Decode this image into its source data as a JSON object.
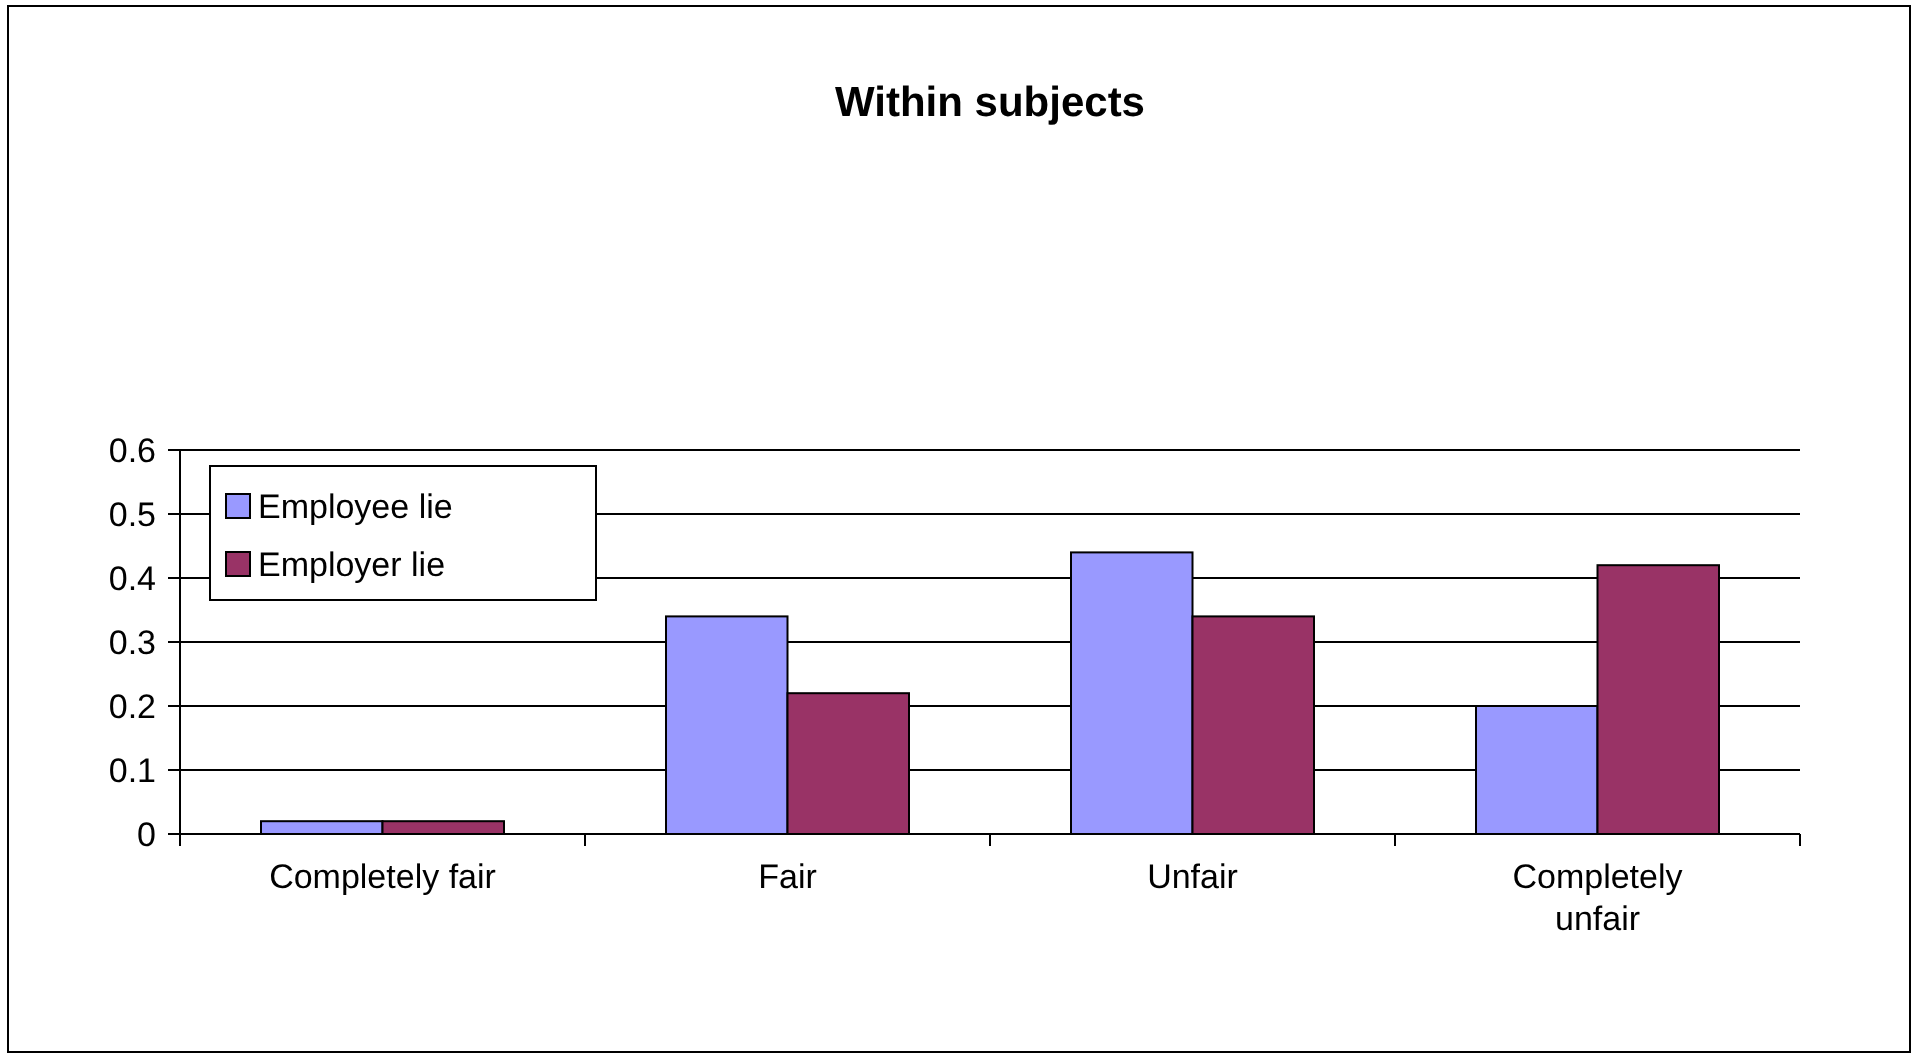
{
  "chart_data": {
    "type": "bar",
    "title": "Within subjects",
    "categories": [
      "Completely fair",
      "Fair",
      "Unfair",
      "Completely unfair"
    ],
    "series": [
      {
        "name": "Employee lie",
        "color": "#9999ff",
        "values": [
          0.02,
          0.34,
          0.44,
          0.2
        ]
      },
      {
        "name": "Employer lie",
        "color": "#993366",
        "values": [
          0.02,
          0.22,
          0.34,
          0.42
        ]
      }
    ],
    "ylim": [
      0,
      0.6
    ],
    "yticks": [
      0,
      0.1,
      0.2,
      0.3,
      0.4,
      0.5,
      0.6
    ],
    "grid": "y",
    "legend": "top left"
  }
}
